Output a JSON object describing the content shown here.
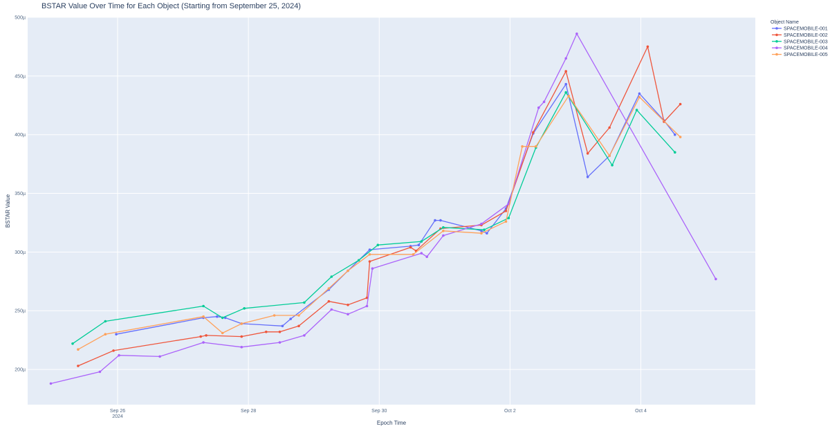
{
  "chart_data": {
    "type": "line",
    "title": "BSTAR Value Over Time for Each Object (Starting from September 25, 2024)",
    "xlabel": "Epoch Time",
    "ylabel": "BSTAR Value",
    "x_range": [
      "2024-09-24T15:00",
      "2024-10-05T18:00"
    ],
    "ylim": [
      0.00017,
      0.0005
    ],
    "y_ticks": [
      0.0002,
      0.00025,
      0.0003,
      0.00035,
      0.0004,
      0.00045,
      0.0005
    ],
    "y_tick_labels": [
      "200µ",
      "250µ",
      "300µ",
      "350µ",
      "400µ",
      "450µ",
      "500µ"
    ],
    "x_ticks": [
      "2024-09-26",
      "2024-09-28",
      "2024-09-30",
      "2024-10-02",
      "2024-10-04"
    ],
    "x_tick_labels": [
      "Sep 26",
      "Sep 28",
      "Sep 30",
      "Oct 2",
      "Oct 4"
    ],
    "x_tick_sublabel": "2024",
    "background": "#e5ecf6",
    "grid": true,
    "legend": {
      "title": "Object Name",
      "placement": "top-right"
    },
    "series": [
      {
        "name": "SPACEMOBILE-001",
        "color": "#636efa",
        "points": [
          [
            "2024-09-25T23:30",
            0.00023
          ],
          [
            "2024-09-27T07:30",
            0.000244
          ],
          [
            "2024-09-27T12:30",
            0.000245
          ],
          [
            "2024-09-27T15:30",
            0.000244
          ],
          [
            "2024-09-27T21:30",
            0.000239
          ],
          [
            "2024-09-28T12:30",
            0.000237
          ],
          [
            "2024-09-28T15:30",
            0.000243
          ],
          [
            "2024-09-29T05:30",
            0.000268
          ],
          [
            "2024-09-29T12:30",
            0.000284
          ],
          [
            "2024-09-29T20:30",
            0.000302
          ],
          [
            "2024-09-30T11:30",
            0.000305
          ],
          [
            "2024-09-30T14:30",
            0.000306
          ],
          [
            "2024-09-30T20:30",
            0.000327
          ],
          [
            "2024-09-30T22:30",
            0.000327
          ],
          [
            "2024-10-01T13:30",
            0.000318
          ],
          [
            "2024-10-01T15:30",
            0.000316
          ],
          [
            "2024-10-01T22:30",
            0.000337
          ],
          [
            "2024-10-02T08:30",
            0.000401
          ],
          [
            "2024-10-02T20:30",
            0.000443
          ],
          [
            "2024-10-03T04:30",
            0.000364
          ],
          [
            "2024-10-03T12:30",
            0.000382
          ],
          [
            "2024-10-03T23:30",
            0.000435
          ],
          [
            "2024-10-04T08:30",
            0.000412
          ],
          [
            "2024-10-04T12:30",
            0.0004
          ]
        ]
      },
      {
        "name": "SPACEMOBILE-002",
        "color": "#ef553b",
        "points": [
          [
            "2024-09-25T09:30",
            0.000203
          ],
          [
            "2024-09-25T22:30",
            0.000216
          ],
          [
            "2024-09-27T06:30",
            0.000228
          ],
          [
            "2024-09-27T08:30",
            0.000229
          ],
          [
            "2024-09-27T21:30",
            0.000228
          ],
          [
            "2024-09-28T06:30",
            0.000232
          ],
          [
            "2024-09-28T11:30",
            0.000232
          ],
          [
            "2024-09-28T18:30",
            0.000237
          ],
          [
            "2024-09-29T05:30",
            0.000258
          ],
          [
            "2024-09-29T12:30",
            0.000255
          ],
          [
            "2024-09-29T19:30",
            0.000261
          ],
          [
            "2024-09-29T20:30",
            0.000292
          ],
          [
            "2024-09-30T11:30",
            0.000304
          ],
          [
            "2024-09-30T13:30",
            0.000301
          ],
          [
            "2024-09-30T22:30",
            0.00032
          ],
          [
            "2024-10-01T13:30",
            0.000323
          ],
          [
            "2024-10-01T22:30",
            0.000335
          ],
          [
            "2024-10-02T08:30",
            0.000402
          ],
          [
            "2024-10-02T20:30",
            0.000454
          ],
          [
            "2024-10-03T04:30",
            0.000384
          ],
          [
            "2024-10-03T12:30",
            0.000406
          ],
          [
            "2024-10-04T02:30",
            0.000475
          ],
          [
            "2024-10-04T08:30",
            0.000411
          ],
          [
            "2024-10-04T14:30",
            0.000426
          ]
        ]
      },
      {
        "name": "SPACEMOBILE-003",
        "color": "#00cc96",
        "points": [
          [
            "2024-09-25T07:30",
            0.000222
          ],
          [
            "2024-09-25T19:30",
            0.000241
          ],
          [
            "2024-09-27T07:30",
            0.000254
          ],
          [
            "2024-09-27T14:30",
            0.000244
          ],
          [
            "2024-09-27T22:30",
            0.000252
          ],
          [
            "2024-09-28T20:30",
            0.000257
          ],
          [
            "2024-09-29T06:30",
            0.000279
          ],
          [
            "2024-09-29T16:30",
            0.000293
          ],
          [
            "2024-09-29T23:30",
            0.000306
          ],
          [
            "2024-09-30T15:30",
            0.000309
          ],
          [
            "2024-09-30T23:30",
            0.000321
          ],
          [
            "2024-10-01T14:30",
            0.000319
          ],
          [
            "2024-10-01T23:30",
            0.000329
          ],
          [
            "2024-10-02T09:30",
            0.000389
          ],
          [
            "2024-10-02T20:30",
            0.000436
          ],
          [
            "2024-10-03T13:30",
            0.000374
          ],
          [
            "2024-10-03T22:30",
            0.000421
          ],
          [
            "2024-10-04T12:30",
            0.000385
          ]
        ]
      },
      {
        "name": "SPACEMOBILE-004",
        "color": "#ab63fa",
        "points": [
          [
            "2024-09-24T23:30",
            0.000188
          ],
          [
            "2024-09-25T17:30",
            0.000198
          ],
          [
            "2024-09-26T00:30",
            0.000212
          ],
          [
            "2024-09-26T15:30",
            0.000211
          ],
          [
            "2024-09-27T07:30",
            0.000223
          ],
          [
            "2024-09-27T21:30",
            0.000219
          ],
          [
            "2024-09-28T11:30",
            0.000223
          ],
          [
            "2024-09-28T20:30",
            0.000229
          ],
          [
            "2024-09-29T06:30",
            0.000251
          ],
          [
            "2024-09-29T12:30",
            0.000247
          ],
          [
            "2024-09-29T19:30",
            0.000254
          ],
          [
            "2024-09-29T21:30",
            0.000286
          ],
          [
            "2024-09-30T15:30",
            0.000299
          ],
          [
            "2024-09-30T17:30",
            0.000296
          ],
          [
            "2024-09-30T23:30",
            0.000314
          ],
          [
            "2024-10-01T13:30",
            0.000324
          ],
          [
            "2024-10-01T23:30",
            0.000341
          ],
          [
            "2024-10-02T10:30",
            0.000423
          ],
          [
            "2024-10-02T12:30",
            0.000428
          ],
          [
            "2024-10-02T20:30",
            0.000465
          ],
          [
            "2024-10-03T00:30",
            0.000486
          ],
          [
            "2024-10-05T03:30",
            0.000277
          ]
        ]
      },
      {
        "name": "SPACEMOBILE-005",
        "color": "#ffa15a",
        "points": [
          [
            "2024-09-25T09:30",
            0.000217
          ],
          [
            "2024-09-25T19:30",
            0.00023
          ],
          [
            "2024-09-27T07:30",
            0.000245
          ],
          [
            "2024-09-27T14:30",
            0.000231
          ],
          [
            "2024-09-27T21:30",
            0.000239
          ],
          [
            "2024-09-28T09:30",
            0.000246
          ],
          [
            "2024-09-28T18:30",
            0.000246
          ],
          [
            "2024-09-29T05:30",
            0.000269
          ],
          [
            "2024-09-29T12:30",
            0.000284
          ],
          [
            "2024-09-29T20:30",
            0.000298
          ],
          [
            "2024-09-30T12:30",
            0.000298
          ],
          [
            "2024-09-30T23:30",
            0.000318
          ],
          [
            "2024-10-01T13:30",
            0.000316
          ],
          [
            "2024-10-01T22:30",
            0.000326
          ],
          [
            "2024-10-02T04:30",
            0.00039
          ],
          [
            "2024-10-02T09:30",
            0.00039
          ],
          [
            "2024-10-02T21:30",
            0.000433
          ],
          [
            "2024-10-03T12:30",
            0.000382
          ],
          [
            "2024-10-03T23:30",
            0.000432
          ],
          [
            "2024-10-04T14:30",
            0.000398
          ]
        ]
      }
    ]
  }
}
